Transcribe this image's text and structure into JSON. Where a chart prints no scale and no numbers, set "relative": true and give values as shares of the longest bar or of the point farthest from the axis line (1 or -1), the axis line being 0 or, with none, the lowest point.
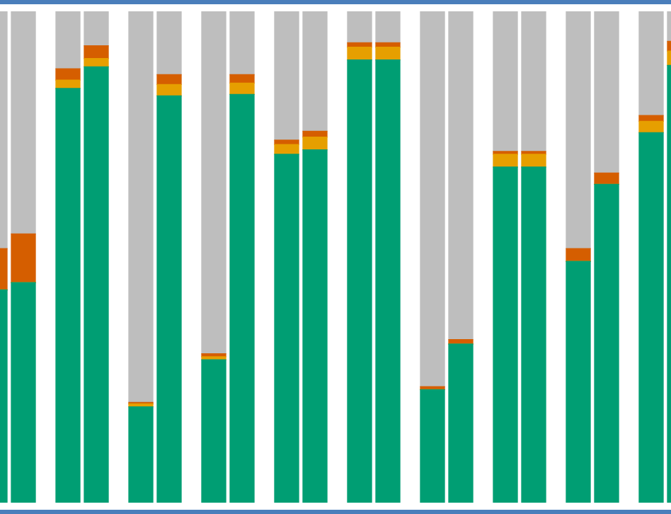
{
  "chart_data": {
    "type": "bar",
    "stacked": true,
    "relative": true,
    "legend": false,
    "categories": [
      null,
      null,
      null,
      null,
      null,
      null,
      null,
      null,
      null,
      null,
      null,
      null,
      null,
      null,
      null,
      null,
      null,
      null,
      null,
      null
    ],
    "series": [
      {
        "color": "#009e73",
        "values": [
          0.433,
          0.448,
          0.843,
          0.887,
          0.195,
          0.828,
          0.291,
          0.831,
          0.709,
          0.718,
          0.901,
          0.901,
          0.23,
          0.323,
          0.683,
          0.683,
          0.491,
          0.648,
          0.753,
          0.89
        ]
      },
      {
        "color": "#e69f00",
        "values": [
          0,
          0,
          0.017,
          0.017,
          0.006,
          0.023,
          0.006,
          0.023,
          0.02,
          0.026,
          0.026,
          0.026,
          0,
          0,
          0.026,
          0.026,
          0,
          0,
          0.023,
          0.029
        ]
      },
      {
        "color": "#d55e00",
        "values": [
          0.084,
          0.099,
          0.023,
          0.026,
          0.003,
          0.02,
          0.006,
          0.017,
          0.009,
          0.012,
          0.009,
          0.009,
          0.006,
          0.009,
          0.006,
          0.006,
          0.026,
          0.023,
          0.012,
          0.02
        ]
      },
      {
        "color": "#bebebe",
        "values": [
          0.483,
          0.453,
          0.117,
          0.07,
          0.796,
          0.129,
          0.697,
          0.129,
          0.262,
          0.244,
          0.064,
          0.064,
          0.764,
          0.668,
          0.285,
          0.285,
          0.483,
          0.329,
          0.212,
          0.061
        ]
      }
    ]
  }
}
